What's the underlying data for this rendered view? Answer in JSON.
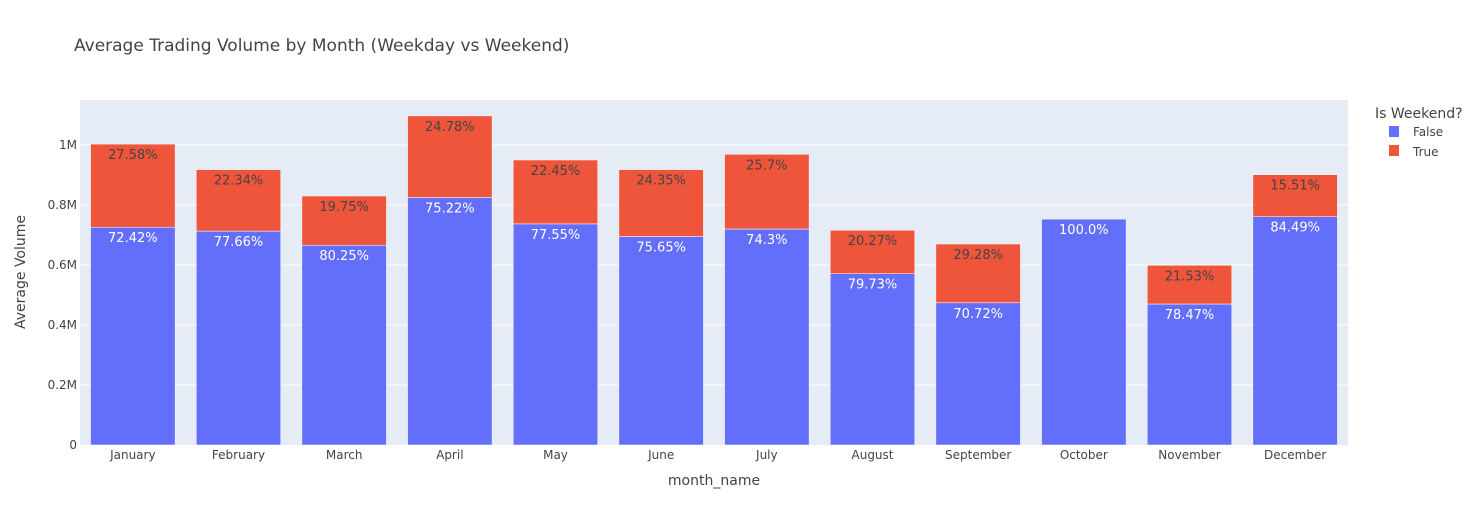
{
  "chart_data": {
    "type": "bar",
    "barmode": "stack",
    "title": "Average Trading Volume by Month (Weekday vs Weekend)",
    "xlabel": "month_name",
    "ylabel": "Average Volume",
    "ylim": [
      0,
      1150000
    ],
    "yticks": [
      0,
      200000,
      400000,
      600000,
      800000,
      1000000
    ],
    "ytick_labels": [
      "0",
      "0.2M",
      "0.4M",
      "0.6M",
      "0.8M",
      "1M"
    ],
    "categories": [
      "January",
      "February",
      "March",
      "April",
      "May",
      "June",
      "July",
      "August",
      "September",
      "October",
      "November",
      "December"
    ],
    "grid": true,
    "legend": {
      "title": "Is Weekend?",
      "position": "top-right"
    },
    "series": [
      {
        "name": "False",
        "color": "#636efa",
        "values": [
          726000,
          713000,
          666000,
          825000,
          737000,
          695000,
          720000,
          571000,
          474000,
          753000,
          470000,
          761000
        ],
        "labels": [
          "72.42%",
          "77.66%",
          "80.25%",
          "75.22%",
          "77.55%",
          "75.65%",
          "74.3%",
          "79.73%",
          "70.72%",
          "100.0%",
          "78.47%",
          "84.49%"
        ]
      },
      {
        "name": "True",
        "color": "#ef553b",
        "values": [
          277000,
          205000,
          164000,
          272000,
          213000,
          223000,
          249000,
          145000,
          196000,
          0,
          129000,
          140000
        ],
        "labels": [
          "27.58%",
          "22.34%",
          "19.75%",
          "24.78%",
          "22.45%",
          "24.35%",
          "25.7%",
          "20.27%",
          "29.28%",
          "",
          "21.53%",
          "15.51%"
        ]
      }
    ]
  }
}
